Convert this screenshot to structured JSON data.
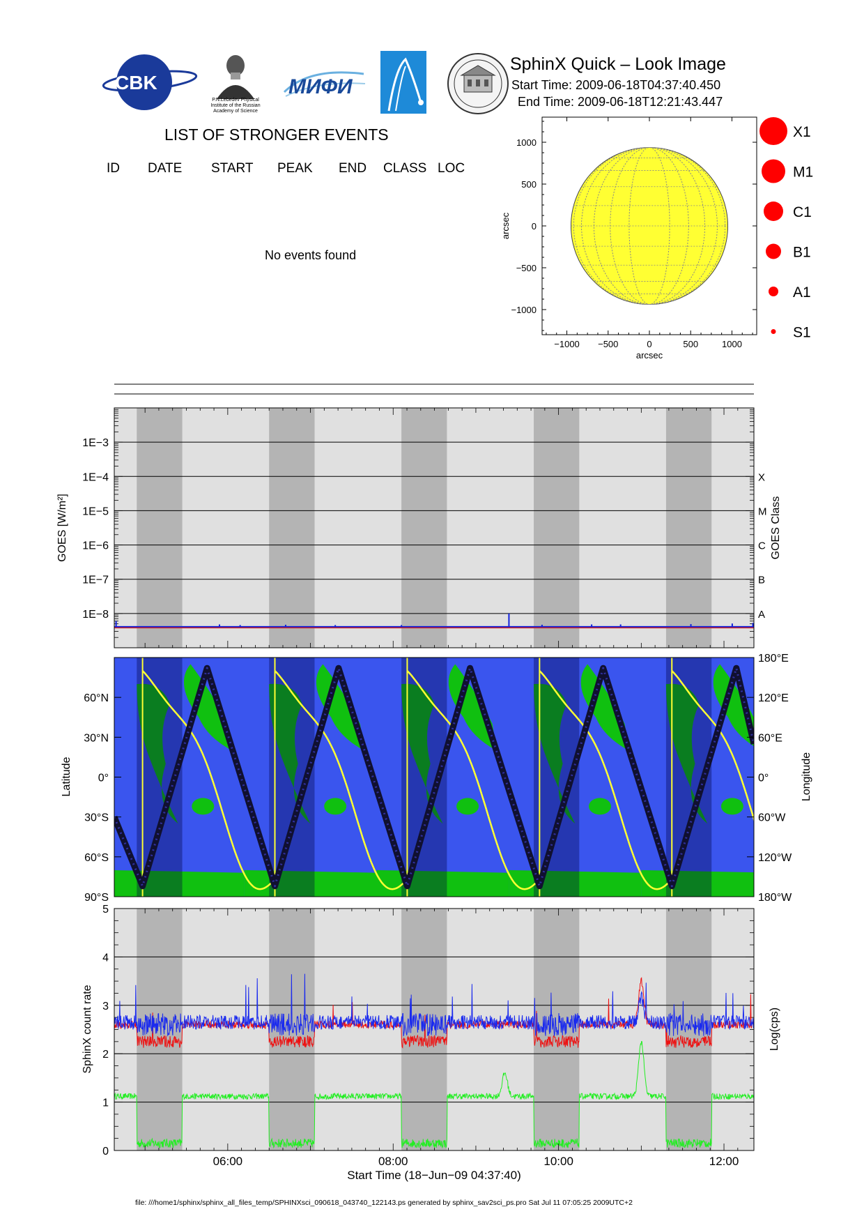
{
  "header": {
    "title": "SphinX Quick – Look Image",
    "start_time": "Start Time: 2009-06-18T04:37:40.450",
    "end_time": "End Time: 2009-06-18T12:21:43.447",
    "logos": [
      {
        "name": "cbk-pan-logo",
        "text": "CBK"
      },
      {
        "name": "lebedev-institute-logo",
        "caption": [
          "P.N.Lebedev Physical",
          "Institute of the Russian",
          "Academy of Science"
        ]
      },
      {
        "name": "mifi-logo",
        "text": "MИФИ"
      },
      {
        "name": "comet-logo"
      },
      {
        "name": "university-seal-logo"
      }
    ]
  },
  "events": {
    "title": "LIST OF STRONGER EVENTS",
    "columns": [
      "ID",
      "DATE",
      "START",
      "PEAK",
      "END",
      "CLASS",
      "LOC"
    ],
    "message": "No events found"
  },
  "legend_classes": [
    "X1",
    "M1",
    "C1",
    "B1",
    "A1",
    "S1"
  ],
  "colors": {
    "sun": "#ffff33",
    "event_marker": "#ff0000",
    "night_band": "#b4b4b4",
    "day_band": "#e0e0e0",
    "ocean": "#3a55ee",
    "land": "#10c010",
    "track": "#101030",
    "terminator": "#ffff33",
    "sphinx_red": "#ee1111",
    "sphinx_blue": "#1a2aee",
    "sphinx_green": "#22ee22",
    "goes_flux": "#1020dd",
    "goes_threshold": "#cc2222"
  },
  "chart_data": [
    {
      "type": "scatter",
      "name": "solar-disk",
      "xlabel": "arcsec",
      "ylabel": "arcsec",
      "xlim": [
        -1300,
        1300
      ],
      "ylim": [
        -1300,
        1300
      ],
      "xticks": [
        -1000,
        -500,
        0,
        500,
        1000
      ],
      "xtick_labels": [
        "−1000",
        "−500",
        "0",
        "500",
        "1000"
      ],
      "yticks": [
        1000,
        500,
        0,
        -500,
        -1000
      ],
      "ytick_labels": [
        "1000",
        "500",
        "0",
        "−500",
        "−1000"
      ],
      "disk_radius": 950,
      "grid": true,
      "events": []
    },
    {
      "type": "line",
      "name": "goes-flux",
      "ylabel": "GOES [W/m²]",
      "y2label": "GOES Class",
      "yscale": "log",
      "ylim": [
        1e-09,
        0.01
      ],
      "yticks": [
        0.001,
        0.0001,
        1e-05,
        1e-06,
        1e-07,
        1e-08
      ],
      "ytick_labels": [
        "1E−3",
        "1E−4",
        "1E−5",
        "1E−6",
        "1E−7",
        "1E−8"
      ],
      "class_labels": [
        {
          "label": "X",
          "value": 0.0001
        },
        {
          "label": "M",
          "value": 1e-05
        },
        {
          "label": "C",
          "value": 1e-06
        },
        {
          "label": "B",
          "value": 1e-07
        },
        {
          "label": "A",
          "value": 1e-08
        }
      ],
      "threshold": 4e-09,
      "flux_base": 4e-09,
      "spikes": [
        {
          "x": 4.65,
          "y": 6e-09
        },
        {
          "x": 5.9,
          "y": 4.8e-09
        },
        {
          "x": 6.15,
          "y": 4.6e-09
        },
        {
          "x": 6.7,
          "y": 4.7e-09
        },
        {
          "x": 7.3,
          "y": 4.6e-09
        },
        {
          "x": 8.1,
          "y": 4.6e-09
        },
        {
          "x": 9.4,
          "y": 1e-08
        },
        {
          "x": 9.8,
          "y": 4.7e-09
        },
        {
          "x": 10.4,
          "y": 4.8e-09
        },
        {
          "x": 10.75,
          "y": 4.8e-09
        },
        {
          "x": 11.6,
          "y": 4.9e-09
        },
        {
          "x": 12.1,
          "y": 5.1e-09
        },
        {
          "x": 12.35,
          "y": 5.3e-09
        }
      ]
    },
    {
      "type": "line",
      "name": "orbit-track",
      "ylabel": "Latitude",
      "y2label": "Longitude",
      "ylim": [
        -90,
        90
      ],
      "yticks": [
        60,
        30,
        0,
        -30,
        -60,
        -90
      ],
      "ytick_labels": [
        "60°N",
        "30°N",
        "0°",
        "30°S",
        "60°S",
        "90°S"
      ],
      "y2ticks": [
        180,
        120,
        60,
        0,
        -60,
        -120,
        -180
      ],
      "y2tick_labels": [
        "180°E",
        "120°E",
        "60°E",
        "0°",
        "60°W",
        "120°W",
        "180°W"
      ],
      "latitude_track": [
        {
          "x": 4.628,
          "y": -30
        },
        {
          "x": 4.97,
          "y": -82
        },
        {
          "x": 5.75,
          "y": 82
        },
        {
          "x": 6.57,
          "y": -82
        },
        {
          "x": 7.34,
          "y": 82
        },
        {
          "x": 8.17,
          "y": -82
        },
        {
          "x": 8.93,
          "y": 82
        },
        {
          "x": 9.77,
          "y": -82
        },
        {
          "x": 10.54,
          "y": 82
        },
        {
          "x": 11.37,
          "y": -82
        },
        {
          "x": 12.15,
          "y": 82
        },
        {
          "x": 12.362,
          "y": 25
        }
      ]
    },
    {
      "type": "line",
      "name": "sphinx-count-rate",
      "ylabel": "SphinX count rate",
      "y2label": "Log(cps)",
      "xlabel": "Start Time (18−Jun−09 04:37:40)",
      "xlim": [
        4.628,
        12.362
      ],
      "xticks": [
        6,
        8,
        10,
        12
      ],
      "xtick_labels": [
        "06:00",
        "08:00",
        "10:00",
        "12:00"
      ],
      "ylim": [
        0,
        5
      ],
      "yticks": [
        0,
        1,
        2,
        3,
        4,
        5
      ],
      "ytick_labels": [
        "0",
        "1",
        "2",
        "3",
        "4",
        "5"
      ],
      "night_intervals": [
        [
          4.9,
          5.45
        ],
        [
          6.5,
          7.05
        ],
        [
          8.1,
          8.65
        ],
        [
          9.7,
          10.25
        ],
        [
          11.3,
          11.85
        ]
      ],
      "series": [
        {
          "color": "red",
          "level": 2.6,
          "night_level": 2.25
        },
        {
          "color": "blue",
          "level": 2.65,
          "night_level": 2.6
        },
        {
          "color": "green",
          "level": 1.12,
          "night_level": 0.15
        }
      ],
      "peaks": [
        {
          "series": "red",
          "x": 11.0,
          "y": 3.5
        },
        {
          "series": "blue",
          "x": 11.0,
          "y": 3.15
        },
        {
          "series": "green",
          "x": 11.0,
          "y": 2.25
        },
        {
          "series": "green",
          "x": 9.35,
          "y": 1.6
        }
      ]
    }
  ],
  "footer": "file: ///home1/sphinx/sphinx_all_files_temp/SPHINXsci_090618_043740_122143.ps generated by sphinx_sav2sci_ps.pro Sat Jul 11 07:05:25 2009UTC+2"
}
